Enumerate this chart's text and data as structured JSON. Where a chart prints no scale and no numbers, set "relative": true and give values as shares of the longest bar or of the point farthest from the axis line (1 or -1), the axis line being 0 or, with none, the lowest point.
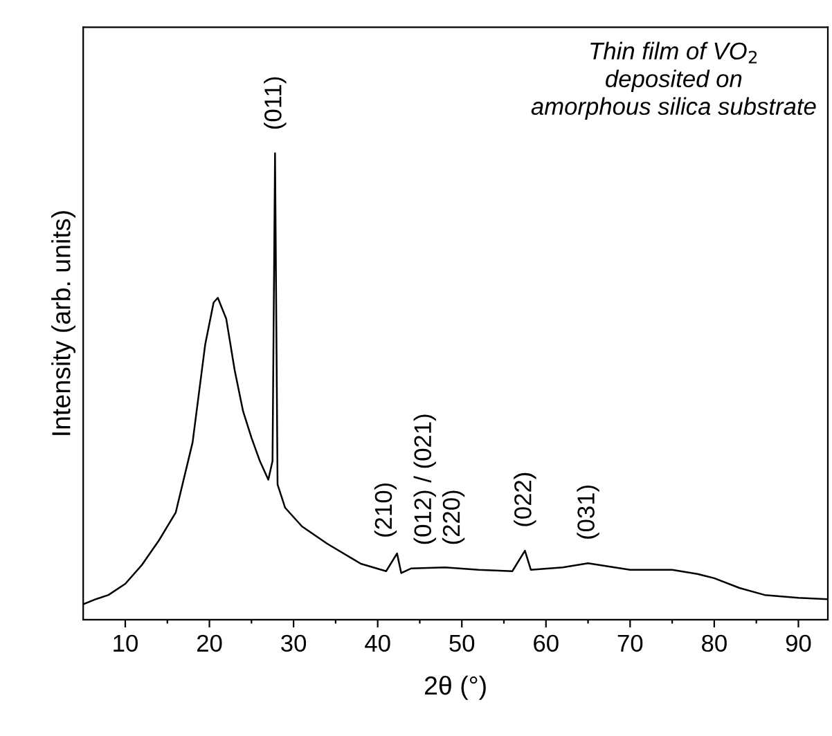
{
  "chart_data": {
    "type": "line",
    "relative": true,
    "xlabel": "2θ (°)",
    "ylabel": "Intensity (arb. units)",
    "tick_labels": "x",
    "grid": false,
    "marker": "none",
    "line_style": "solid",
    "xlim": [
      5,
      93.5
    ],
    "xticks": [
      10,
      {
        "value": 15,
        "label": null
      },
      20,
      {
        "value": 25,
        "label": null
      },
      30,
      {
        "value": 35,
        "label": null
      },
      40,
      {
        "value": 45,
        "label": null
      },
      50,
      {
        "value": 55,
        "label": null
      },
      60,
      {
        "value": 65,
        "label": null
      },
      70,
      {
        "value": 75,
        "label": null
      },
      80,
      {
        "value": 85,
        "label": null
      },
      90
    ],
    "series": [
      {
        "color": "#000000",
        "x": [
          5,
          6.5,
          8,
          10,
          12,
          14,
          16,
          18,
          19.5,
          20.5,
          21,
          22,
          23,
          24,
          25,
          26,
          27,
          27.5,
          27.8,
          28.1,
          29,
          31,
          34,
          38,
          41,
          42.3,
          42.8,
          44,
          48,
          52,
          56,
          57.5,
          58.2,
          62,
          65,
          70,
          75,
          78,
          80,
          83,
          86,
          90,
          93.5
        ],
        "values": [
          0.033,
          0.044,
          0.053,
          0.077,
          0.118,
          0.17,
          0.23,
          0.38,
          0.59,
          0.68,
          0.69,
          0.645,
          0.535,
          0.447,
          0.39,
          0.34,
          0.3,
          0.34,
          1.0,
          0.29,
          0.24,
          0.2,
          0.163,
          0.12,
          0.104,
          0.142,
          0.1,
          0.11,
          0.112,
          0.107,
          0.104,
          0.148,
          0.107,
          0.112,
          0.121,
          0.107,
          0.107,
          0.098,
          0.089,
          0.068,
          0.053,
          0.047,
          0.044
        ]
      }
    ],
    "annotations": [
      {
        "text": "(011)",
        "x": 27.8,
        "y": 1.0
      },
      {
        "text": "(210)",
        "x": 42.3,
        "y": 0.142
      },
      {
        "text": "(012) / (021)",
        "x": 44,
        "y": 0.11
      },
      {
        "text": "(220)",
        "x": 49,
        "y": 0.11
      },
      {
        "text": "(022)",
        "x": 57.5,
        "y": 0.148
      },
      {
        "text": "(031)",
        "x": 65,
        "y": 0.121
      },
      "Thin film of VO$_{2}$\ndeposited on\namorphous silica substrate"
    ]
  }
}
